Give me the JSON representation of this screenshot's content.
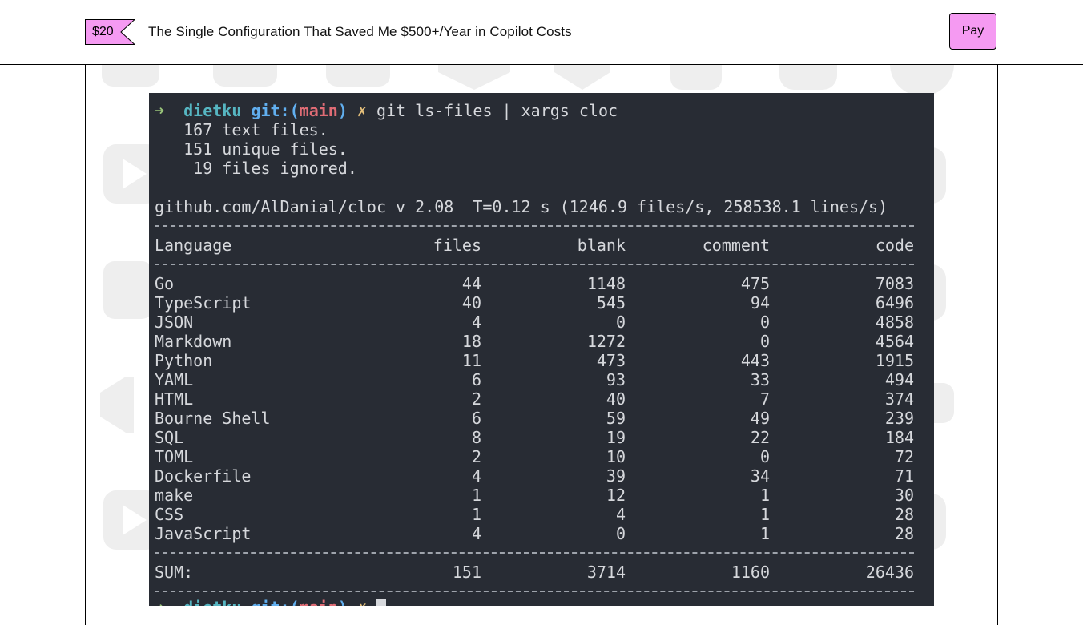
{
  "header": {
    "price": "$20",
    "title": "The Single Configuration That Saved Me $500+/Year in Copilot Costs",
    "pay_label": "Pay"
  },
  "colors": {
    "accent": "#f59af2",
    "terminal_bg": "#282c34",
    "terminal_text": "#d6d8dc",
    "prompt_arrow": "#98c379",
    "prompt_dir": "#56b6c2",
    "prompt_git": "#61afef",
    "prompt_branch": "#e06c75",
    "prompt_dirty": "#e5c07b"
  },
  "terminal": {
    "prompt": {
      "arrow": "➜",
      "dir": "dietku",
      "git": "git:(",
      "branch": "main",
      "git_close": ")",
      "dirty": "✗",
      "command": "git ls-files | xargs cloc"
    },
    "summary": [
      "   167 text files.",
      "   151 unique files.",
      "    19 files ignored."
    ],
    "version_line": "github.com/AlDanial/cloc v 2.08  T=0.12 s (1246.9 files/s, 258538.1 lines/s)",
    "columns": [
      "Language",
      "files",
      "blank",
      "comment",
      "code"
    ],
    "rows": [
      {
        "language": "Go",
        "files": "44",
        "blank": "1148",
        "comment": "475",
        "code": "7083"
      },
      {
        "language": "TypeScript",
        "files": "40",
        "blank": "545",
        "comment": "94",
        "code": "6496"
      },
      {
        "language": "JSON",
        "files": "4",
        "blank": "0",
        "comment": "0",
        "code": "4858"
      },
      {
        "language": "Markdown",
        "files": "18",
        "blank": "1272",
        "comment": "0",
        "code": "4564"
      },
      {
        "language": "Python",
        "files": "11",
        "blank": "473",
        "comment": "443",
        "code": "1915"
      },
      {
        "language": "YAML",
        "files": "6",
        "blank": "93",
        "comment": "33",
        "code": "494"
      },
      {
        "language": "HTML",
        "files": "2",
        "blank": "40",
        "comment": "7",
        "code": "374"
      },
      {
        "language": "Bourne Shell",
        "files": "6",
        "blank": "59",
        "comment": "49",
        "code": "239"
      },
      {
        "language": "SQL",
        "files": "8",
        "blank": "19",
        "comment": "22",
        "code": "184"
      },
      {
        "language": "TOML",
        "files": "2",
        "blank": "10",
        "comment": "0",
        "code": "72"
      },
      {
        "language": "Dockerfile",
        "files": "4",
        "blank": "39",
        "comment": "34",
        "code": "71"
      },
      {
        "language": "make",
        "files": "1",
        "blank": "12",
        "comment": "1",
        "code": "30"
      },
      {
        "language": "CSS",
        "files": "1",
        "blank": "4",
        "comment": "1",
        "code": "28"
      },
      {
        "language": "JavaScript",
        "files": "4",
        "blank": "0",
        "comment": "1",
        "code": "28"
      }
    ],
    "sum": {
      "label": "SUM:",
      "files": "151",
      "blank": "3714",
      "comment": "1160",
      "code": "26436"
    },
    "last_prompt": {
      "arrow": "➜",
      "dir": "dietku",
      "git": "git:(",
      "branch": "main",
      "git_close": ")",
      "dirty": "✗"
    }
  }
}
